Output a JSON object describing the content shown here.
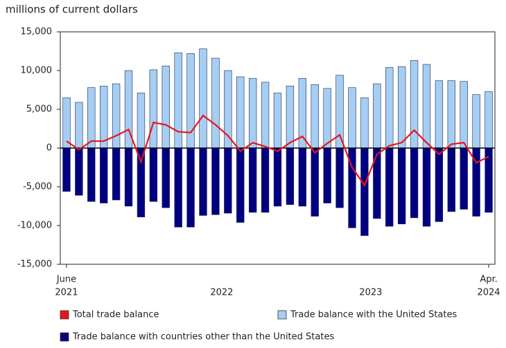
{
  "chart_data": {
    "type": "bar_line",
    "title": "millions of current dollars",
    "categories": [
      "June",
      null,
      null,
      null,
      null,
      null,
      null,
      null,
      null,
      null,
      null,
      null,
      null,
      null,
      null,
      null,
      null,
      null,
      null,
      null,
      null,
      null,
      null,
      null,
      null,
      null,
      null,
      null,
      null,
      null,
      null,
      null,
      null,
      null,
      "Apr."
    ],
    "years": [
      "2021",
      "2022",
      "2023",
      "2024"
    ],
    "series": [
      {
        "name": "Total trade balance",
        "color": "#e8141b",
        "kind": "line",
        "values": [
          900,
          -200,
          900,
          900,
          1600,
          2400,
          -1800,
          3300,
          3000,
          2100,
          2000,
          4200,
          3000,
          1600,
          -400,
          700,
          200,
          -400,
          700,
          1500,
          -600,
          600,
          1700,
          -2500,
          -4800,
          -800,
          300,
          700,
          2300,
          700,
          -800,
          500,
          700,
          -1900,
          -1100
        ]
      },
      {
        "name": "Trade balance with the United States",
        "color": "#a6cdf2",
        "kind": "bar",
        "values": [
          6500,
          5900,
          7800,
          8000,
          8300,
          10000,
          7100,
          10100,
          10600,
          12300,
          12200,
          12800,
          11600,
          10000,
          9200,
          9000,
          8500,
          7100,
          8000,
          9000,
          8200,
          7700,
          9400,
          7800,
          6500,
          8300,
          10400,
          10500,
          11300,
          10800,
          8700,
          8700,
          8600,
          6900,
          7300
        ]
      },
      {
        "name": "Trade balance with countries other than the United States",
        "color": "#000080",
        "kind": "bar",
        "values": [
          -5600,
          -6100,
          -6900,
          -7100,
          -6700,
          -7500,
          -8900,
          -6900,
          -7700,
          -10200,
          -10200,
          -8700,
          -8600,
          -8400,
          -9600,
          -8300,
          -8300,
          -7500,
          -7300,
          -7500,
          -8800,
          -7100,
          -7700,
          -10300,
          -11300,
          -9100,
          -10100,
          -9800,
          -9000,
          -10100,
          -9500,
          -8200,
          -7900,
          -8800,
          -8300
        ]
      }
    ],
    "ylim": [
      -15000,
      15000
    ],
    "yticks": [
      {
        "value": -15000,
        "label": "-15,000"
      },
      {
        "value": -10000,
        "label": "-10,000"
      },
      {
        "value": -5000,
        "label": "-5,000"
      },
      0,
      {
        "value": 5000,
        "label": "5,000"
      },
      {
        "value": 10000,
        "label": "10,000"
      },
      {
        "value": 15000,
        "label": "15,000"
      }
    ]
  }
}
